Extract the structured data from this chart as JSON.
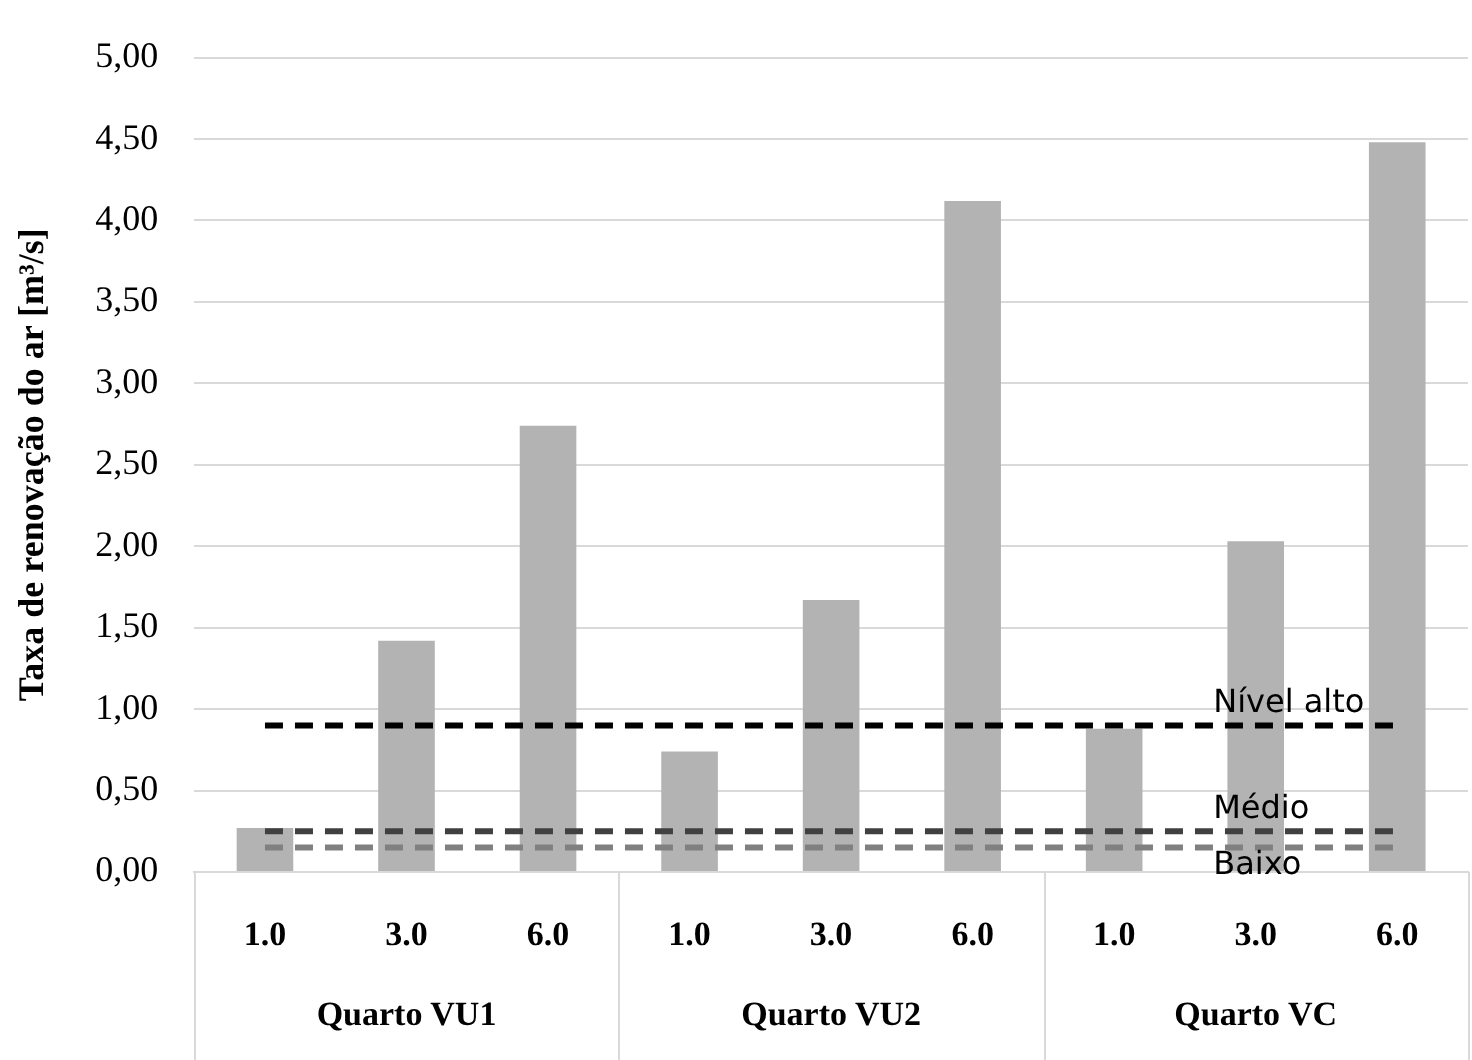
{
  "chart_data": {
    "type": "bar",
    "ylabel": "Taxa de renovação do ar [m³/s]",
    "categories": [
      "1.0",
      "3.0",
      "6.0",
      "1.0",
      "3.0",
      "6.0",
      "1.0",
      "3.0",
      "6.0"
    ],
    "values": [
      0.27,
      1.42,
      2.74,
      0.74,
      1.67,
      4.12,
      0.88,
      2.03,
      4.48
    ],
    "color": "#b3b3b3",
    "ylim": [
      0,
      5
    ],
    "yticks": [
      {
        "value": 0,
        "label": "0,00"
      },
      {
        "value": 0.5,
        "label": "0,50"
      },
      {
        "value": 1,
        "label": "1,00"
      },
      {
        "value": 1.5,
        "label": "1,50"
      },
      {
        "value": 2,
        "label": "2,00"
      },
      {
        "value": 2.5,
        "label": "2,50"
      },
      {
        "value": 3,
        "label": "3,00"
      },
      {
        "value": 3.5,
        "label": "3,50"
      },
      {
        "value": 4,
        "label": "4,00"
      },
      {
        "value": 4.5,
        "label": "4,50"
      },
      {
        "value": 5,
        "label": "5,00"
      }
    ],
    "grid": "y",
    "legend": false,
    "ref_lines": [
      {
        "axis": "y",
        "value": 0.9,
        "label": "Nível alto",
        "color": "#000000",
        "line_style": "dashed"
      },
      {
        "axis": "y",
        "value": 0.25,
        "label": "Médio",
        "color": "#404040",
        "line_style": "dashed"
      },
      {
        "axis": "y",
        "value": 0.15,
        "label": "Baixo",
        "color": "#808080",
        "line_style": "dashed"
      }
    ],
    "annotations": [
      "Quarto VU1",
      "Quarto VU2",
      "Quarto VC"
    ]
  }
}
